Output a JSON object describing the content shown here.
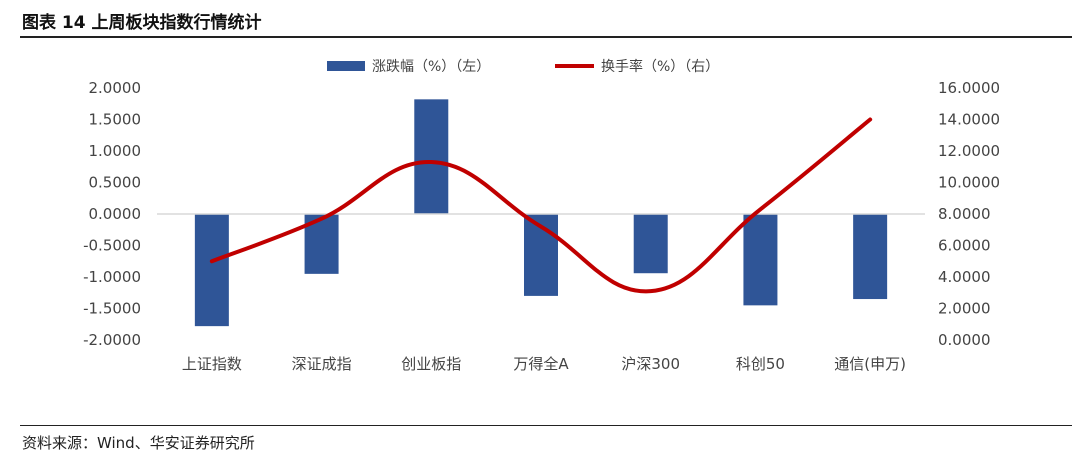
{
  "figure": {
    "title": "图表 14  上周板块指数行情统计",
    "source": "资料来源：Wind、华安证券研究所"
  },
  "colors": {
    "bar": "#2F5597",
    "line": "#C00000",
    "axis": "#D9D9D9",
    "text": "#444444"
  },
  "chart_data": {
    "type": "bar",
    "categories": [
      "上证指数",
      "深证成指",
      "创业板指",
      "万得全A",
      "沪深300",
      "科创50",
      "通信(申万)"
    ],
    "series": [
      {
        "name": "涨跌幅（%）（左）",
        "type": "bar",
        "axis": "left",
        "values": [
          -1.78,
          -0.95,
          1.82,
          -1.3,
          -0.94,
          -1.45,
          -1.35
        ]
      },
      {
        "name": "换手率（%）（右）",
        "type": "line",
        "axis": "right",
        "values": [
          5.0,
          7.7,
          11.3,
          7.2,
          3.1,
          8.3,
          14.0
        ]
      }
    ],
    "y_left": {
      "min": -2,
      "max": 2,
      "ticks": [
        "2.0000",
        "1.5000",
        "1.0000",
        "0.5000",
        "0.0000",
        "-0.5000",
        "-1.0000",
        "-1.5000",
        "-2.0000"
      ]
    },
    "y_right": {
      "min": 0,
      "max": 16,
      "ticks": [
        "16.0000",
        "14.0000",
        "12.0000",
        "10.0000",
        "8.0000",
        "6.0000",
        "4.0000",
        "2.0000",
        "0.0000"
      ]
    },
    "legend_position": "top",
    "grid": false
  }
}
